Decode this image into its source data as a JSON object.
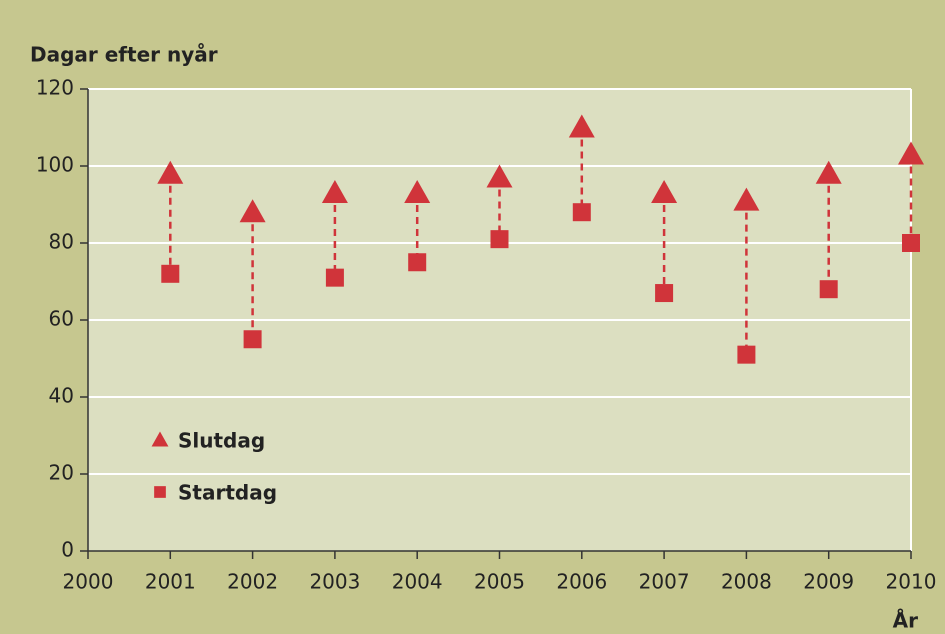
{
  "chart_data": {
    "type": "scatter",
    "y_label": "Dagar efter nyår",
    "x_label": "År",
    "x": [
      2001,
      2002,
      2003,
      2004,
      2005,
      2006,
      2007,
      2008,
      2009,
      2010
    ],
    "series": [
      {
        "name": "Slutdag",
        "color": "#d0343a",
        "marker": "triangle",
        "values": [
          98,
          88,
          93,
          93,
          97,
          110,
          93,
          91,
          98,
          103
        ]
      },
      {
        "name": "Startdag",
        "color": "#d0343a",
        "marker": "square",
        "values": [
          72,
          55,
          71,
          75,
          81,
          88,
          67,
          51,
          68,
          80
        ]
      }
    ],
    "connector": true,
    "xlim": [
      2000,
      2010
    ],
    "xticks": [
      2000,
      2001,
      2002,
      2003,
      2004,
      2005,
      2006,
      2007,
      2008,
      2009,
      2010
    ],
    "ylim": [
      0,
      120
    ],
    "yticks": [
      0,
      20,
      40,
      60,
      80,
      100,
      120
    ],
    "grid": true,
    "legend": "lower left"
  }
}
